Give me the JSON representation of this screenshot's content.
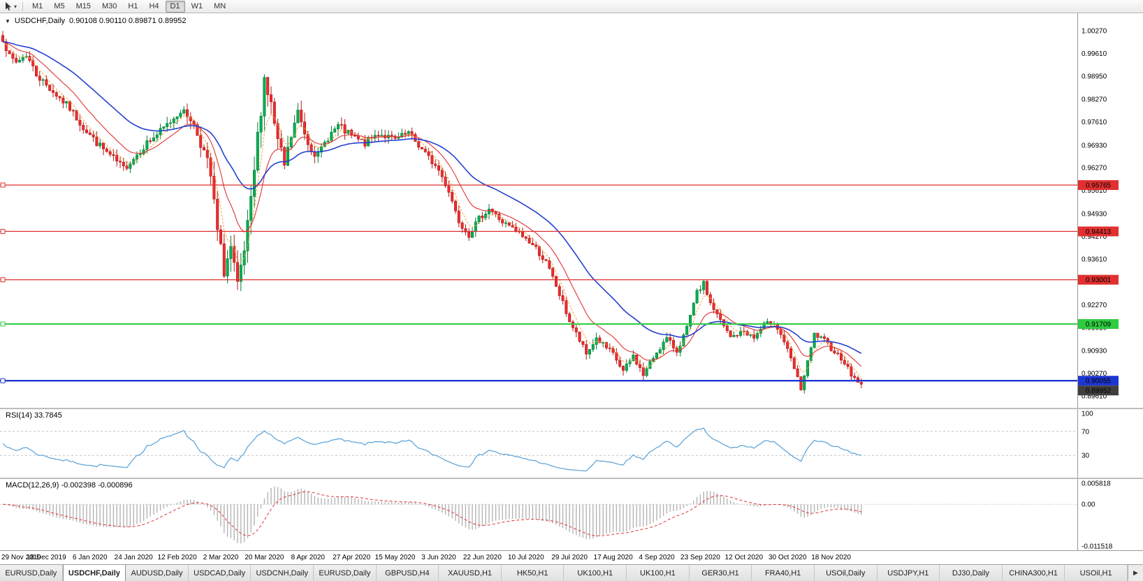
{
  "icons": {
    "dropdown_caret": "▾",
    "title_caret": "▼",
    "tabs_scroll_right": "▶"
  },
  "toolbar": {
    "timeframes": [
      {
        "label": "M1",
        "active": false
      },
      {
        "label": "M5",
        "active": false
      },
      {
        "label": "M15",
        "active": false
      },
      {
        "label": "M30",
        "active": false
      },
      {
        "label": "H1",
        "active": false
      },
      {
        "label": "H4",
        "active": false
      },
      {
        "label": "D1",
        "active": true
      },
      {
        "label": "W1",
        "active": false
      },
      {
        "label": "MN",
        "active": false
      }
    ]
  },
  "main_chart": {
    "title_symbol": "USDCHF,Daily",
    "ohlc_text": "0.90108 0.90110 0.89871 0.89952",
    "price_axis_labels": [
      "1.00270",
      "0.99610",
      "0.98950",
      "0.98270",
      "0.97610",
      "0.96930",
      "0.96270",
      "0.95610",
      "0.94930",
      "0.94270",
      "0.93610",
      "0.92930",
      "0.92270",
      "0.91610",
      "0.90930",
      "0.90270",
      "0.89610"
    ],
    "levels": [
      {
        "price": 0.95765,
        "label": "0.95765",
        "color": "#e03030",
        "width": 1.2
      },
      {
        "price": 0.94413,
        "label": "0.94413",
        "color": "#e03030",
        "width": 1.2
      },
      {
        "price": 0.93001,
        "label": "0.93001",
        "color": "#e03030",
        "width": 1.2
      },
      {
        "price": 0.91709,
        "label": "0.91709",
        "color": "#2ecc40",
        "width": 2
      },
      {
        "price": 0.90055,
        "label": "0.90055",
        "color": "#1e36d0",
        "width": 2.4
      }
    ],
    "current_price_label": "0.89952",
    "colors": {
      "up_candle": "#00b050",
      "up_candle_border": "#007a35",
      "down_candle": "#f02c2c",
      "down_candle_border": "#b01515",
      "ma_fast": "#f2a33c",
      "ma_mid": "#e03232",
      "ma_slow": "#2440cf",
      "current_price_box": "#3f3f3f"
    }
  },
  "rsi_panel": {
    "label": "RSI(14) 33.7845",
    "color": "#56a0d8",
    "scale_max": 100,
    "scale_min": 0,
    "guide_levels": [
      70,
      30
    ],
    "axis_labels": [
      {
        "text": "100",
        "value": 100
      },
      {
        "text": "70",
        "value": 70
      },
      {
        "text": "30",
        "value": 30
      }
    ]
  },
  "macd_panel": {
    "label": "MACD(12,26,9) -0.002398 -0.000896",
    "bar_color": "#b4b4b4",
    "signal_color": "#e03232",
    "scale_max": 0.005818,
    "scale_min": -0.011518,
    "axis_labels": [
      {
        "text": "0.005818",
        "value": 0.005818
      },
      {
        "text": "0.00",
        "value": 0
      },
      {
        "text": "-0.011518",
        "value": -0.011518
      }
    ]
  },
  "date_axis": [
    "29 Nov 2019",
    "18 Dec 2019",
    "6 Jan 2020",
    "24 Jan 2020",
    "12 Feb 2020",
    "2 Mar 2020",
    "20 Mar 2020",
    "8 Apr 2020",
    "27 Apr 2020",
    "15 May 2020",
    "3 Jun 2020",
    "22 Jun 2020",
    "10 Jul 2020",
    "29 Jul 2020",
    "17 Aug 2020",
    "4 Sep 2020",
    "23 Sep 2020",
    "12 Oct 2020",
    "30 Oct 2020",
    "18 Nov 2020"
  ],
  "tabs": {
    "items": [
      {
        "label": "EURUSD,Daily",
        "active": false
      },
      {
        "label": "USDCHF,Daily",
        "active": true
      },
      {
        "label": "AUDUSD,Daily",
        "active": false
      },
      {
        "label": "USDCAD,Daily",
        "active": false
      },
      {
        "label": "USDCNH,Daily",
        "active": false
      },
      {
        "label": "EURUSD,Daily",
        "active": false
      },
      {
        "label": "GBPUSD,H4",
        "active": false
      },
      {
        "label": "XAUUSD,H1",
        "active": false
      },
      {
        "label": "HK50,H1",
        "active": false
      },
      {
        "label": "UK100,H1",
        "active": false
      },
      {
        "label": "UK100,H1",
        "active": false
      },
      {
        "label": "GER30,H1",
        "active": false
      },
      {
        "label": "FRA40,H1",
        "active": false
      },
      {
        "label": "USOil,Daily",
        "active": false
      },
      {
        "label": "USDJPY,H1",
        "active": false
      },
      {
        "label": "DJ30,Daily",
        "active": false
      },
      {
        "label": "CHINA300,H1",
        "active": false
      },
      {
        "label": "USOil,H1",
        "active": false
      }
    ]
  },
  "chart_data": {
    "type": "candlestick",
    "symbol": "USDCHF",
    "timeframe": "Daily",
    "seed": 7,
    "candles_count": 257,
    "last_close": 0.89952,
    "indicators": {
      "rsi_period": 14,
      "macd": [
        12,
        26,
        9
      ]
    },
    "ma_periods": {
      "slow": 34,
      "mid": 13,
      "fast": 5
    },
    "price_anchors": [
      [
        0,
        1.0005
      ],
      [
        2,
        0.995
      ],
      [
        4,
        0.9935
      ],
      [
        7,
        0.9958
      ],
      [
        10,
        0.99
      ],
      [
        13,
        0.9868
      ],
      [
        16,
        0.984
      ],
      [
        20,
        0.98
      ],
      [
        24,
        0.9745
      ],
      [
        28,
        0.97
      ],
      [
        32,
        0.9662
      ],
      [
        36,
        0.9625
      ],
      [
        39,
        0.9655
      ],
      [
        43,
        0.97
      ],
      [
        47,
        0.9732
      ],
      [
        50,
        0.9762
      ],
      [
        53,
        0.9795
      ],
      [
        56,
        0.9772
      ],
      [
        59,
        0.9705
      ],
      [
        62,
        0.96
      ],
      [
        64,
        0.9438
      ],
      [
        66,
        0.933
      ],
      [
        68,
        0.939
      ],
      [
        70,
        0.9272
      ],
      [
        72,
        0.938
      ],
      [
        74,
        0.952
      ],
      [
        76,
        0.9715
      ],
      [
        78,
        0.989
      ],
      [
        80,
        0.9808
      ],
      [
        82,
        0.97
      ],
      [
        84,
        0.9632
      ],
      [
        86,
        0.9718
      ],
      [
        88,
        0.9788
      ],
      [
        91,
        0.9702
      ],
      [
        94,
        0.966
      ],
      [
        97,
        0.9718
      ],
      [
        100,
        0.9748
      ],
      [
        104,
        0.9718
      ],
      [
        108,
        0.9698
      ],
      [
        112,
        0.9728
      ],
      [
        117,
        0.9708
      ],
      [
        121,
        0.9728
      ],
      [
        125,
        0.968
      ],
      [
        130,
        0.962
      ],
      [
        133,
        0.956
      ],
      [
        136,
        0.9472
      ],
      [
        139,
        0.9432
      ],
      [
        142,
        0.9478
      ],
      [
        145,
        0.9508
      ],
      [
        149,
        0.9468
      ],
      [
        153,
        0.9442
      ],
      [
        156,
        0.942
      ],
      [
        159,
        0.9392
      ],
      [
        162,
        0.935
      ],
      [
        165,
        0.9282
      ],
      [
        169,
        0.918
      ],
      [
        172,
        0.9122
      ],
      [
        174,
        0.9082
      ],
      [
        177,
        0.913
      ],
      [
        180,
        0.91
      ],
      [
        182,
        0.9082
      ],
      [
        185,
        0.9032
      ],
      [
        188,
        0.9078
      ],
      [
        191,
        0.9022
      ],
      [
        195,
        0.909
      ],
      [
        198,
        0.9128
      ],
      [
        201,
        0.9092
      ],
      [
        204,
        0.9158
      ],
      [
        207,
        0.9262
      ],
      [
        209,
        0.9288
      ],
      [
        211,
        0.9232
      ],
      [
        214,
        0.918
      ],
      [
        217,
        0.9132
      ],
      [
        221,
        0.915
      ],
      [
        224,
        0.913
      ],
      [
        227,
        0.9168
      ],
      [
        230,
        0.9178
      ],
      [
        233,
        0.912
      ],
      [
        236,
        0.904
      ],
      [
        238,
        0.8982
      ],
      [
        240,
        0.9058
      ],
      [
        242,
        0.914
      ],
      [
        245,
        0.9122
      ],
      [
        247,
        0.91
      ],
      [
        249,
        0.9082
      ],
      [
        251,
        0.906
      ],
      [
        253,
        0.9022
      ],
      [
        256,
        0.89952
      ]
    ],
    "volatility_anchors": [
      [
        0,
        0.0017
      ],
      [
        55,
        0.0019
      ],
      [
        61,
        0.0042
      ],
      [
        80,
        0.0042
      ],
      [
        88,
        0.0026
      ],
      [
        110,
        0.0017
      ],
      [
        150,
        0.0014
      ],
      [
        170,
        0.0016
      ],
      [
        200,
        0.0013
      ],
      [
        256,
        0.0012
      ]
    ]
  }
}
